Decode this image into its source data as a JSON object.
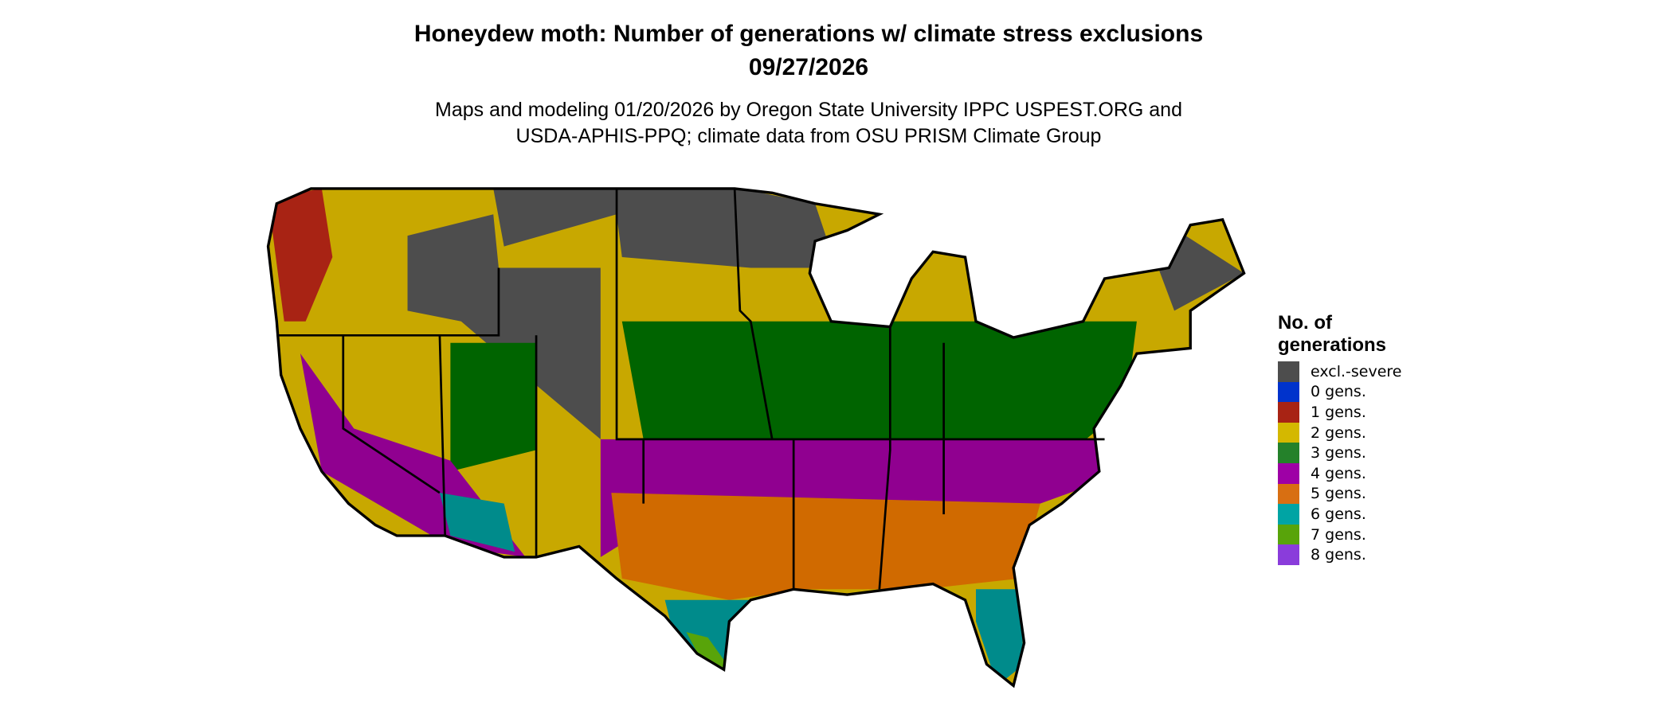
{
  "title": "Honeydew moth: Number of generations w/ climate stress exclusions",
  "date": "09/27/2026",
  "subtitle_line1": "Maps and modeling 01/20/2026 by Oregon State University IPPC USPEST.ORG and",
  "subtitle_line2": "USDA-APHIS-PPQ; climate data from OSU PRISM Climate Group",
  "legend": {
    "title_line1": "No. of",
    "title_line2": "generations",
    "items": [
      {
        "label": "excl.-severe",
        "color": "#4d4d4d"
      },
      {
        "label": "0 gens.",
        "color": "#0033cc"
      },
      {
        "label": "1 gens.",
        "color": "#a82314"
      },
      {
        "label": "2 gens.",
        "color": "#d4b800"
      },
      {
        "label": "3 gens.",
        "color": "#24812a"
      },
      {
        "label": "4 gens.",
        "color": "#9e00a6"
      },
      {
        "label": "5 gens.",
        "color": "#d86f12"
      },
      {
        "label": "6 gens.",
        "color": "#00a4a4"
      },
      {
        "label": "7 gens.",
        "color": "#58a40a"
      },
      {
        "label": "8 gens.",
        "color": "#8a3cdb"
      }
    ]
  },
  "map_colors": {
    "excl": "#4d4d4d",
    "g1": "#a82314",
    "g2": "#c8a800",
    "g3": "#006400",
    "g4": "#900090",
    "g5": "#d06a00",
    "g6": "#008b8b",
    "g7": "#58a40a",
    "border": "#000000"
  }
}
